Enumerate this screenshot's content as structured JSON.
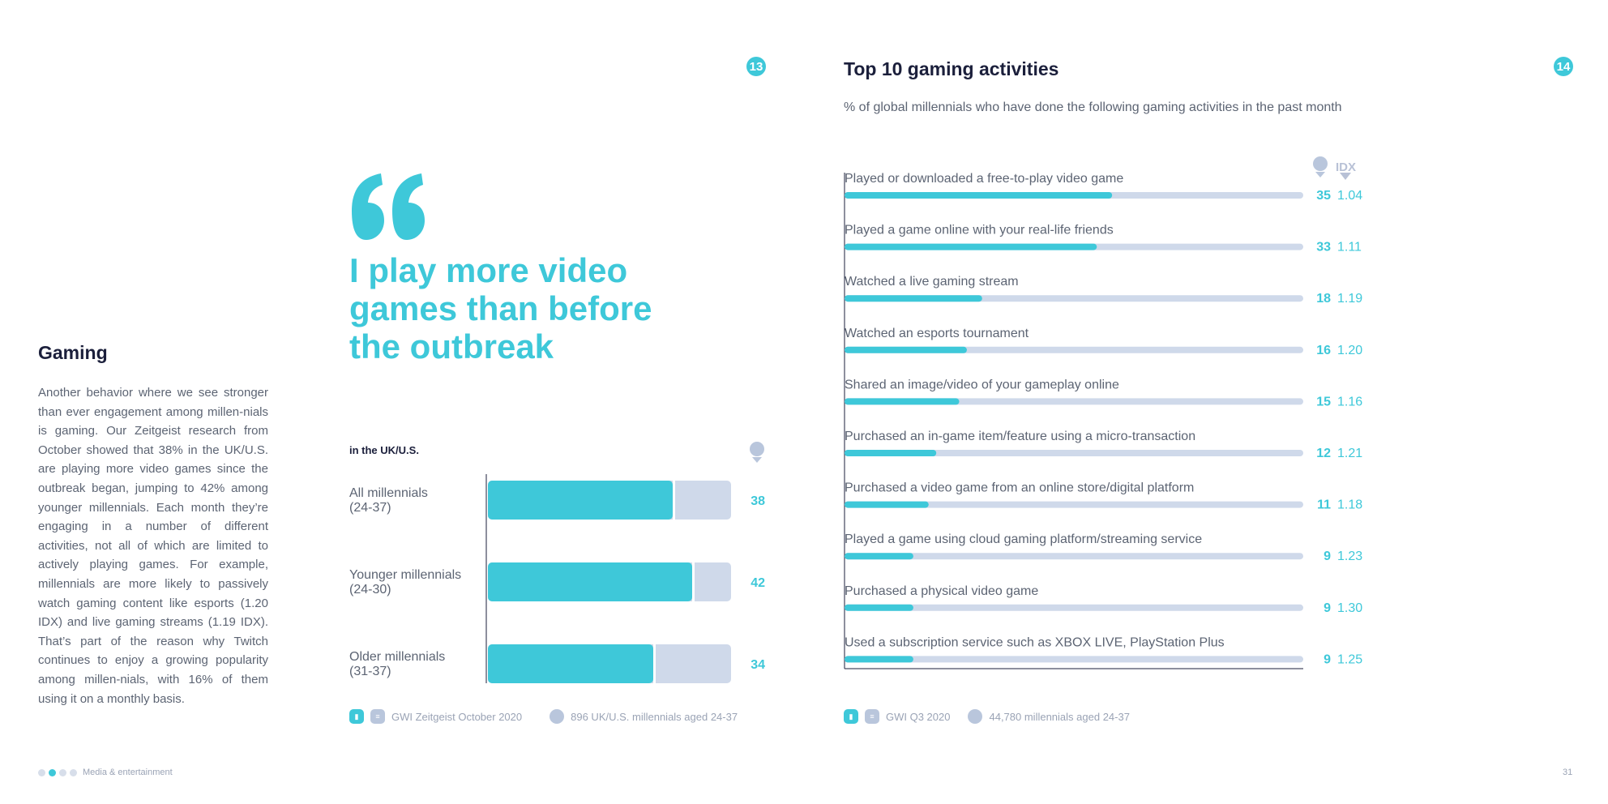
{
  "badges": {
    "left_page": "13",
    "right_page": "14"
  },
  "gaming": {
    "title": "Gaming",
    "body": "Another behavior where we see stronger than ever engagement among millen-nials is gaming. Our Zeitgeist research from October showed that 38% in the UK/U.S. are playing more video games since the outbreak began, jumping to 42% among younger millennials. Each month they’re engaging in a number of different activities, not all of which are limited to actively playing games. For example, millennials are more likely to passively watch gaming content like esports (1.20 IDX) and live gaming streams (1.19 IDX). That’s part of the reason why Twitch continues to enjoy a growing popularity among millen-nials, with 16% of them using it on a monthly basis."
  },
  "quote": {
    "headline": "I play more video games than before the outbreak",
    "region": "in the UK/U.S."
  },
  "sources_left": {
    "source": "GWI Zeitgeist October 2020",
    "sample": "896 UK/U.S. millennials aged 24-37"
  },
  "sources_right": {
    "source": "GWI Q3 2020",
    "sample": "44,780 millennials aged 24-37"
  },
  "top10": {
    "title": "Top 10 gaming activities",
    "subtitle": "% of global millennials who have done the following gaming activities in the past month",
    "idx_label": "IDX"
  },
  "footer": {
    "section": "Media & entertainment",
    "page": "31"
  },
  "colors": {
    "teal": "#3ec8d9",
    "track": "#cfd9ea",
    "navy": "#1b1f3b",
    "muted": "#5c6473"
  },
  "chart_data": [
    {
      "type": "bar",
      "orientation": "horizontal",
      "categories": [
        "All millennials (24-37)",
        "Younger millennials (24-30)",
        "Older millennials (31-37)"
      ],
      "values": [
        38,
        42,
        34
      ],
      "xlim": [
        0,
        50
      ]
    },
    {
      "type": "bar",
      "orientation": "horizontal",
      "categories": [
        "Played or downloaded a free-to-play video game",
        "Played a game online with your real-life friends",
        "Watched a live gaming stream",
        "Watched an esports tournament",
        "Shared an image/video of your gameplay online",
        "Purchased an in-game item/feature using a micro-transaction",
        "Purchased a video game from an online store/digital platform",
        "Played a game using cloud gaming platform/streaming service",
        "Purchased a physical video game",
        "Used a subscription service such as XBOX LIVE, PlayStation Plus"
      ],
      "values": [
        35,
        33,
        18,
        16,
        15,
        12,
        11,
        9,
        9,
        9
      ],
      "idx": [
        "1.04",
        "1.11",
        "1.19",
        "1.20",
        "1.16",
        "1.21",
        "1.18",
        "1.23",
        "1.30",
        "1.25"
      ],
      "xlim": [
        0,
        60
      ]
    }
  ]
}
